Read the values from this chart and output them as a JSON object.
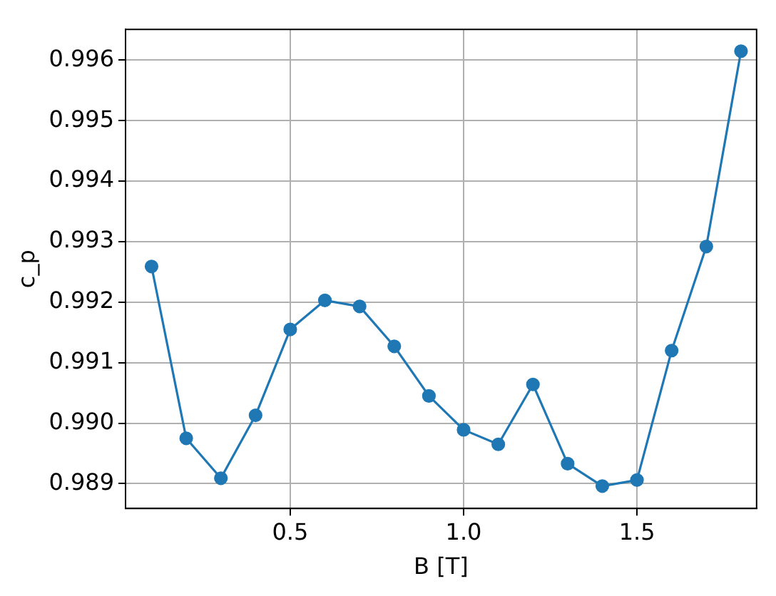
{
  "chart_data": {
    "type": "line",
    "xlabel": "B [T]",
    "ylabel": "c_p",
    "x": [
      0.1,
      0.2,
      0.3,
      0.4,
      0.5,
      0.6,
      0.7,
      0.8,
      0.9,
      1.0,
      1.1,
      1.2,
      1.3,
      1.4,
      1.5,
      1.6,
      1.7,
      1.8
    ],
    "series": [
      {
        "color": "#1f77b4",
        "values": [
          0.99259,
          0.98975,
          0.98909,
          0.99013,
          0.99155,
          0.99203,
          0.99193,
          0.99127,
          0.99045,
          0.98989,
          0.98965,
          0.99064,
          0.98933,
          0.98896,
          0.98906,
          0.9912,
          0.99292,
          0.99615
        ]
      }
    ],
    "xlim": [
      0.025,
      1.845
    ],
    "ylim": [
      0.98859,
      0.99651
    ],
    "xticks": [
      {
        "value": 0.5,
        "label": "0.5"
      },
      {
        "value": 1.0,
        "label": "1.0"
      },
      {
        "value": 1.5,
        "label": "1.5"
      }
    ],
    "yticks": [
      0.989,
      {
        "value": 0.99,
        "label": "0.990"
      },
      0.991,
      0.992,
      0.993,
      0.994,
      0.995,
      0.996
    ],
    "grid": true,
    "marker": "circle",
    "line_style": "solid",
    "legend": false
  }
}
